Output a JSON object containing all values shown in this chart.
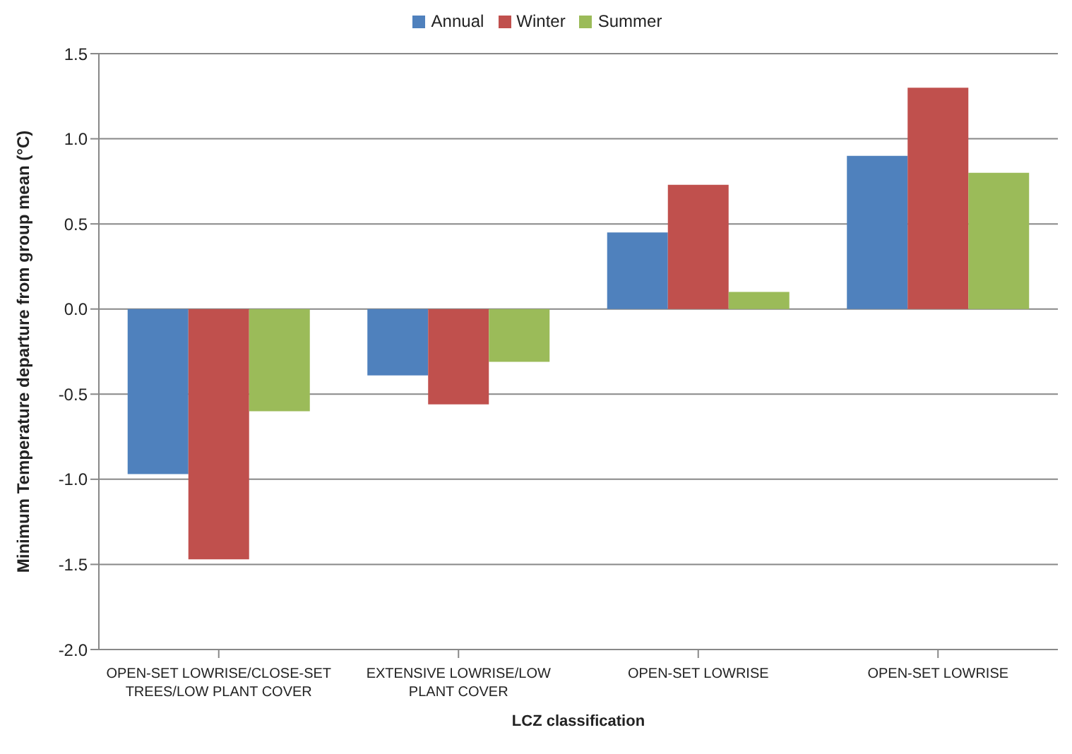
{
  "chart_data": {
    "type": "bar",
    "xlabel": "LCZ classification",
    "ylabel": "Minimum Temperature departure from group mean (°C)",
    "categories": [
      "OPEN-SET LOWRISE/CLOSE-SET TREES/LOW PLANT COVER",
      "EXTENSIVE LOWRISE/LOW PLANT COVER",
      "OPEN-SET LOWRISE",
      "OPEN-SET LOWRISE"
    ],
    "series": [
      {
        "name": "Annual",
        "color": "#4f81bd",
        "values": [
          -0.97,
          -0.39,
          0.45,
          0.9
        ]
      },
      {
        "name": "Winter",
        "color": "#c0504d",
        "values": [
          -1.47,
          -0.56,
          0.73,
          1.3
        ]
      },
      {
        "name": "Summer",
        "color": "#9bbb59",
        "values": [
          -0.6,
          -0.31,
          0.1,
          0.8
        ]
      }
    ],
    "ylim": [
      -2,
      1.5
    ],
    "yticks": [
      1.5,
      {
        "value": 1,
        "label": "1.0"
      },
      0.5,
      {
        "value": 0,
        "label": "0.0"
      },
      -0.5,
      {
        "value": -1,
        "label": "-1.0"
      },
      -1.5,
      {
        "value": -2,
        "label": "-2.0"
      }
    ],
    "grid": "y",
    "legend": "top"
  }
}
